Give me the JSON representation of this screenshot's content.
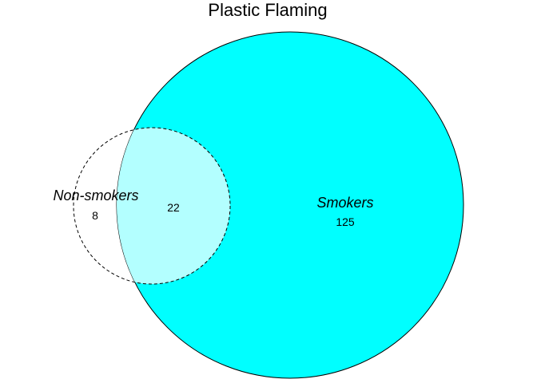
{
  "diagram": {
    "title": "Plastic Flaming",
    "sets": [
      {
        "name": "Non-smokers",
        "fill": "none",
        "stroke": "#000000",
        "line_style": "dashed"
      },
      {
        "name": "Smokers",
        "fill": "#00ffff",
        "stroke": "#000000",
        "line_style": "solid"
      }
    ],
    "regions": {
      "non_smokers_only": 8,
      "intersection": 22,
      "smokers_only": 125
    },
    "intersection_fill": "#b3ffff"
  }
}
